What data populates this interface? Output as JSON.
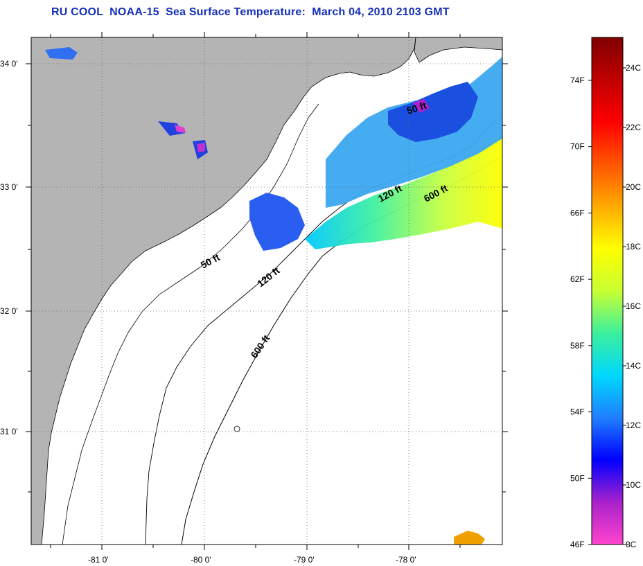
{
  "title": "RU COOL  NOAA-15  Sea Surface Temperature:  March 04, 2010 2103 GMT",
  "map": {
    "lat_labels": [
      "34 0'",
      "33 0'",
      "32 0'",
      "31 0'"
    ],
    "lon_labels": [
      "-81 0'",
      "-80 0'",
      "-79 0'",
      "-78 0'"
    ],
    "land_color": "#b4b4b4",
    "contour_labels": [
      "50 ft",
      "120 ft",
      "600 ft",
      "50 ft",
      "120 ft",
      "600 ft"
    ]
  },
  "color_scale": {
    "fahrenheit_labels": [
      "74F",
      "70F",
      "66F",
      "62F",
      "58F",
      "54F",
      "50F",
      "46F"
    ],
    "celsius_labels": [
      "24C",
      "22C",
      "20C",
      "18C",
      "16C",
      "14C",
      "12C",
      "10C",
      "8C"
    ],
    "colors": [
      "#ff44cc",
      "#aa22cc",
      "#0000ff",
      "#1f7fff",
      "#00d8ff",
      "#3cf09c",
      "#c8ff32",
      "#ffff00",
      "#ffaa00",
      "#ff5500",
      "#ff0000",
      "#c00000",
      "#800000"
    ]
  }
}
